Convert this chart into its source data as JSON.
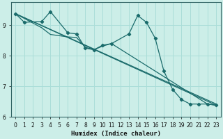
{
  "xlabel": "Humidex (Indice chaleur)",
  "background_color": "#cceee8",
  "grid_color": "#aaddd8",
  "line_color": "#1a6b6b",
  "xlim": [
    -0.5,
    23.5
  ],
  "ylim": [
    6.0,
    9.75
  ],
  "yticks": [
    6,
    7,
    8,
    9
  ],
  "xticks": [
    0,
    1,
    2,
    3,
    4,
    5,
    6,
    7,
    8,
    9,
    10,
    11,
    12,
    13,
    14,
    15,
    16,
    17,
    18,
    19,
    20,
    21,
    22,
    23
  ],
  "line1_x": [
    0,
    1,
    3,
    4,
    6,
    7,
    8,
    9,
    10,
    11,
    13,
    14,
    15,
    16,
    17,
    18,
    19,
    20,
    21,
    22,
    23
  ],
  "line1_y": [
    9.38,
    9.1,
    9.12,
    9.45,
    8.75,
    8.72,
    8.25,
    8.2,
    8.35,
    8.4,
    8.72,
    9.32,
    9.1,
    8.58,
    7.5,
    6.9,
    6.57,
    6.42,
    6.42,
    6.42,
    6.38
  ],
  "line2_x": [
    0,
    3,
    4,
    6,
    7,
    8,
    9,
    10,
    11,
    22,
    23
  ],
  "line2_y": [
    9.38,
    8.92,
    8.7,
    8.62,
    8.6,
    8.28,
    8.2,
    8.32,
    8.4,
    6.42,
    6.38
  ],
  "line3_x": [
    0,
    23
  ],
  "line3_y": [
    9.38,
    6.38
  ],
  "line4_x": [
    0,
    23
  ],
  "line4_y": [
    9.38,
    6.42
  ]
}
